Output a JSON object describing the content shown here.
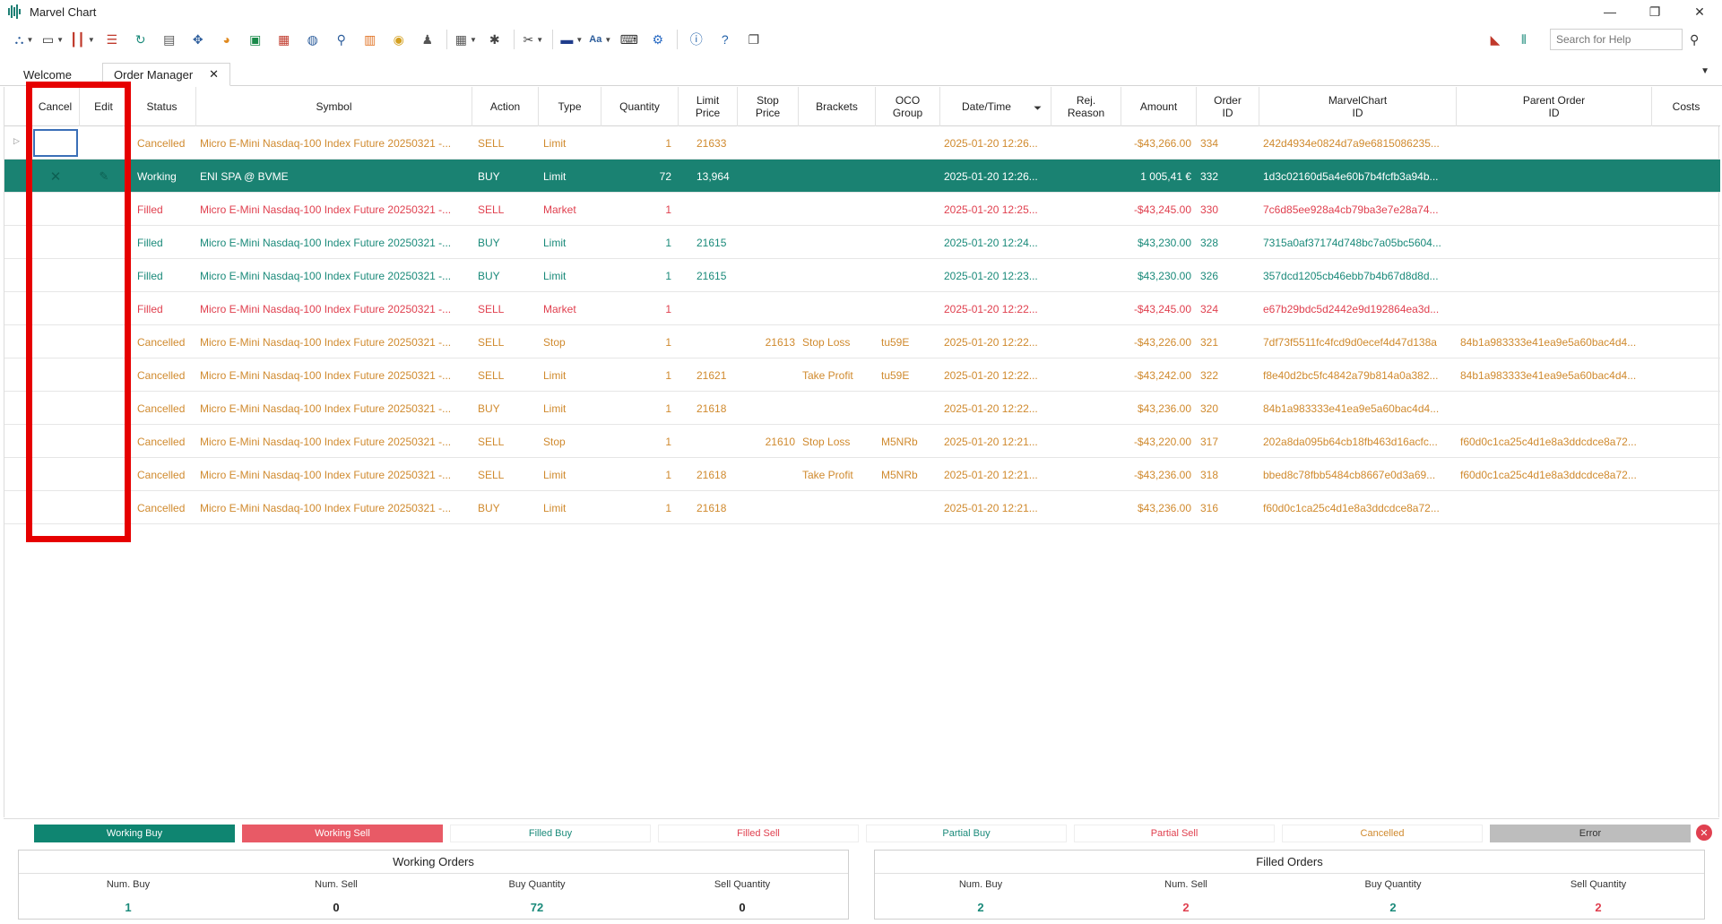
{
  "window": {
    "title": "Marvel Chart",
    "minimize": "—",
    "restore": "❐",
    "close": "✕"
  },
  "toolbar": {
    "search_placeholder": "Search for Help",
    "icons": [
      "network-icon",
      "monitor-icon",
      "candles-icon",
      "scanner-icon",
      "refresh-icon",
      "document-icon",
      "crosshair-icon",
      "pie-icon",
      "download-icon",
      "calendar-icon",
      "globe-icon",
      "people-search-icon",
      "layout-icon",
      "coins-icon",
      "user-icon",
      "calculator-icon",
      "bug-icon",
      "tools-icon",
      "flag-icon",
      "font-icon",
      "keyboard-icon",
      "gear-icon",
      "info-icon",
      "help-icon",
      "windows-icon"
    ],
    "font_label": "Aa"
  },
  "tabs": [
    {
      "label": "Welcome"
    },
    {
      "label": "Order Manager",
      "close": "✕"
    }
  ],
  "columns": {
    "cancel": "Cancel",
    "edit": "Edit",
    "status": "Status",
    "symbol": "Symbol",
    "action": "Action",
    "type": "Type",
    "quantity": "Quantity",
    "limit_price": "Limit Price",
    "stop_price": "Stop Price",
    "brackets": "Brackets",
    "oco_group": "OCO Group",
    "datetime": "Date/Time",
    "rej_reason": "Rej. Reason",
    "amount": "Amount",
    "order_id": "Order ID",
    "marvelchart_id": "MarvelChart ID",
    "parent_order_id": "Parent Order ID",
    "costs": "Costs"
  },
  "colors": {
    "cancelled": "#d08a2e",
    "filled_sell": "#e0404f",
    "filled_buy": "#1a8a7a",
    "selected_bg": "#1a8272",
    "working_buy": "#0f8571",
    "working_sell": "#e85a66",
    "error": "#bdbdbd"
  },
  "orders": [
    {
      "status": "Cancelled",
      "symbol": "Micro E-Mini Nasdaq-100 Index Future 20250321 -...",
      "action": "SELL",
      "type": "Limit",
      "quantity": "1",
      "limit": "21633",
      "stop": "",
      "brackets": "",
      "oco": "",
      "datetime": "2025-01-20 12:26...",
      "amount": "-$43,266.00",
      "order_id": "334",
      "mc_id": "242d4934e0824d7a9e6815086235...",
      "parent_id": "",
      "kind": "cancelled"
    },
    {
      "status": "Working",
      "symbol": "ENI SPA @ BVME",
      "action": "BUY",
      "type": "Limit",
      "quantity": "72",
      "limit": "13,964",
      "stop": "",
      "brackets": "",
      "oco": "",
      "datetime": "2025-01-20 12:26...",
      "amount": "1 005,41 €",
      "order_id": "332",
      "mc_id": "1d3c02160d5a4e60b7b4fcfb3a94b...",
      "parent_id": "",
      "kind": "selected"
    },
    {
      "status": "Filled",
      "symbol": "Micro E-Mini Nasdaq-100 Index Future 20250321 -...",
      "action": "SELL",
      "type": "Market",
      "quantity": "1",
      "limit": "",
      "stop": "",
      "brackets": "",
      "oco": "",
      "datetime": "2025-01-20 12:25...",
      "amount": "-$43,245.00",
      "order_id": "330",
      "mc_id": "7c6d85ee928a4cb79ba3e7e28a74...",
      "parent_id": "",
      "kind": "sell"
    },
    {
      "status": "Filled",
      "symbol": "Micro E-Mini Nasdaq-100 Index Future 20250321 -...",
      "action": "BUY",
      "type": "Limit",
      "quantity": "1",
      "limit": "21615",
      "stop": "",
      "brackets": "",
      "oco": "",
      "datetime": "2025-01-20 12:24...",
      "amount": "$43,230.00",
      "order_id": "328",
      "mc_id": "7315a0af37174d748bc7a05bc5604...",
      "parent_id": "",
      "kind": "buy"
    },
    {
      "status": "Filled",
      "symbol": "Micro E-Mini Nasdaq-100 Index Future 20250321 -...",
      "action": "BUY",
      "type": "Limit",
      "quantity": "1",
      "limit": "21615",
      "stop": "",
      "brackets": "",
      "oco": "",
      "datetime": "2025-01-20 12:23...",
      "amount": "$43,230.00",
      "order_id": "326",
      "mc_id": "357dcd1205cb46ebb7b4b67d8d8d...",
      "parent_id": "",
      "kind": "buy"
    },
    {
      "status": "Filled",
      "symbol": "Micro E-Mini Nasdaq-100 Index Future 20250321 -...",
      "action": "SELL",
      "type": "Market",
      "quantity": "1",
      "limit": "",
      "stop": "",
      "brackets": "",
      "oco": "",
      "datetime": "2025-01-20 12:22...",
      "amount": "-$43,245.00",
      "order_id": "324",
      "mc_id": "e67b29bdc5d2442e9d192864ea3d...",
      "parent_id": "",
      "kind": "sell"
    },
    {
      "status": "Cancelled",
      "symbol": "Micro E-Mini Nasdaq-100 Index Future 20250321 -...",
      "action": "SELL",
      "type": "Stop",
      "quantity": "1",
      "limit": "",
      "stop": "21613",
      "brackets": "Stop Loss",
      "oco": "tu59E",
      "datetime": "2025-01-20 12:22...",
      "amount": "-$43,226.00",
      "order_id": "321",
      "mc_id": "7df73f5511fc4fcd9d0ecef4d47d138a",
      "parent_id": "84b1a983333e41ea9e5a60bac4d4...",
      "kind": "cancelled"
    },
    {
      "status": "Cancelled",
      "symbol": "Micro E-Mini Nasdaq-100 Index Future 20250321 -...",
      "action": "SELL",
      "type": "Limit",
      "quantity": "1",
      "limit": "21621",
      "stop": "",
      "brackets": "Take Profit",
      "oco": "tu59E",
      "datetime": "2025-01-20 12:22...",
      "amount": "-$43,242.00",
      "order_id": "322",
      "mc_id": "f8e40d2bc5fc4842a79b814a0a382...",
      "parent_id": "84b1a983333e41ea9e5a60bac4d4...",
      "kind": "cancelled"
    },
    {
      "status": "Cancelled",
      "symbol": "Micro E-Mini Nasdaq-100 Index Future 20250321 -...",
      "action": "BUY",
      "type": "Limit",
      "quantity": "1",
      "limit": "21618",
      "stop": "",
      "brackets": "",
      "oco": "",
      "datetime": "2025-01-20 12:22...",
      "amount": "$43,236.00",
      "order_id": "320",
      "mc_id": "84b1a983333e41ea9e5a60bac4d4...",
      "parent_id": "",
      "kind": "cancelled"
    },
    {
      "status": "Cancelled",
      "symbol": "Micro E-Mini Nasdaq-100 Index Future 20250321 -...",
      "action": "SELL",
      "type": "Stop",
      "quantity": "1",
      "limit": "",
      "stop": "21610",
      "brackets": "Stop Loss",
      "oco": "M5NRb",
      "datetime": "2025-01-20 12:21...",
      "amount": "-$43,220.00",
      "order_id": "317",
      "mc_id": "202a8da095b64cb18fb463d16acfc...",
      "parent_id": "f60d0c1ca25c4d1e8a3ddcdce8a72...",
      "kind": "cancelled"
    },
    {
      "status": "Cancelled",
      "symbol": "Micro E-Mini Nasdaq-100 Index Future 20250321 -...",
      "action": "SELL",
      "type": "Limit",
      "quantity": "1",
      "limit": "21618",
      "stop": "",
      "brackets": "Take Profit",
      "oco": "M5NRb",
      "datetime": "2025-01-20 12:21...",
      "amount": "-$43,236.00",
      "order_id": "318",
      "mc_id": "bbed8c78fbb5484cb8667e0d3a69...",
      "parent_id": "f60d0c1ca25c4d1e8a3ddcdce8a72...",
      "kind": "cancelled"
    },
    {
      "status": "Cancelled",
      "symbol": "Micro E-Mini Nasdaq-100 Index Future 20250321 -...",
      "action": "BUY",
      "type": "Limit",
      "quantity": "1",
      "limit": "21618",
      "stop": "",
      "brackets": "",
      "oco": "",
      "datetime": "2025-01-20 12:21...",
      "amount": "$43,236.00",
      "order_id": "316",
      "mc_id": "f60d0c1ca25c4d1e8a3ddcdce8a72...",
      "parent_id": "",
      "kind": "cancelled"
    }
  ],
  "legend": [
    {
      "label": "Working Buy",
      "kind": "wbuy"
    },
    {
      "label": "Working Sell",
      "kind": "wsell"
    },
    {
      "label": "Filled Buy",
      "kind": "fbuy"
    },
    {
      "label": "Filled Sell",
      "kind": "fsell"
    },
    {
      "label": "Partial Buy",
      "kind": "pbuy"
    },
    {
      "label": "Partial Sell",
      "kind": "psell"
    },
    {
      "label": "Cancelled",
      "kind": "cancelled"
    },
    {
      "label": "Error",
      "kind": "error"
    }
  ],
  "working_summary": {
    "title": "Working Orders",
    "num_buy_label": "Num. Buy",
    "num_buy": "1",
    "num_sell_label": "Num. Sell",
    "num_sell": "0",
    "buy_qty_label": "Buy Quantity",
    "buy_qty": "72",
    "sell_qty_label": "Sell Quantity",
    "sell_qty": "0"
  },
  "filled_summary": {
    "title": "Filled Orders",
    "num_buy_label": "Num. Buy",
    "num_buy": "2",
    "num_sell_label": "Num. Sell",
    "num_sell": "2",
    "buy_qty_label": "Buy Quantity",
    "buy_qty": "2",
    "sell_qty_label": "Sell Quantity",
    "sell_qty": "2"
  }
}
